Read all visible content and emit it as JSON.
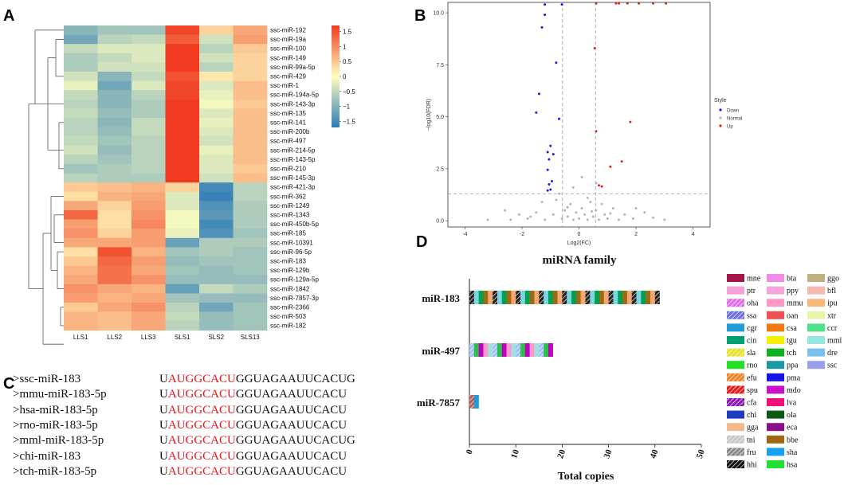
{
  "panels": {
    "a": "A",
    "b": "B",
    "c": "C",
    "d": "D"
  },
  "heatmap": {
    "columns": [
      "LLS1",
      "LLS2",
      "LLS3",
      "SLS1",
      "SLS2",
      "SLS13"
    ],
    "rows": [
      "ssc-miR-192",
      "ssc-miR-19a",
      "ssc-miR-100",
      "ssc-miR-149",
      "ssc-miR-99a-5p",
      "ssc-miR-429",
      "ssc-miR-1",
      "ssc-miR-194a-5p",
      "ssc-miR-143-3p",
      "ssc-miR-135",
      "ssc-miR-141",
      "ssc-miR-200b",
      "ssc-miR-497",
      "ssc-miR-214-5p",
      "ssc-miR-143-5p",
      "ssc-miR-210",
      "ssc-miR-145-3p",
      "ssc-miR-421-3p",
      "ssc-miR-362",
      "ssc-miR-1249",
      "ssc-miR-1343",
      "ssc-miR-450b-5p",
      "ssc-miR-185",
      "ssc-miR-10391",
      "ssc-miR-96-5p",
      "ssc-miR-183",
      "ssc-miR-129b",
      "ssc-miR-129a-5p",
      "ssc-miR-1842",
      "ssc-miR-7857-3p",
      "ssc-miR-2366",
      "ssc-miR-503",
      "ssc-miR-182"
    ],
    "values": [
      [
        -1.0,
        -0.8,
        -0.8,
        1.7,
        0.4,
        0.8
      ],
      [
        -1.2,
        -0.6,
        -0.5,
        1.5,
        -0.4,
        0.9
      ],
      [
        -0.5,
        -0.3,
        -0.3,
        1.8,
        -0.6,
        0.5
      ],
      [
        -0.7,
        -0.5,
        -0.3,
        1.8,
        -0.4,
        0.4
      ],
      [
        -0.7,
        -0.4,
        -0.4,
        1.8,
        -0.6,
        0.4
      ],
      [
        -0.4,
        -1.0,
        -0.5,
        1.6,
        0.2,
        0.4
      ],
      [
        -0.2,
        -1.2,
        -0.3,
        1.7,
        -0.3,
        0.6
      ],
      [
        -0.5,
        -1.0,
        -0.6,
        1.7,
        -0.2,
        0.6
      ],
      [
        -0.6,
        -1.0,
        -0.7,
        1.8,
        -0.1,
        0.5
      ],
      [
        -0.5,
        -0.9,
        -0.7,
        1.8,
        -0.3,
        0.6
      ],
      [
        -0.6,
        -1.0,
        -0.5,
        1.8,
        -0.2,
        0.6
      ],
      [
        -0.6,
        -0.9,
        -0.5,
        1.8,
        -0.3,
        0.6
      ],
      [
        -0.5,
        -0.8,
        -0.6,
        1.8,
        -0.4,
        0.6
      ],
      [
        -0.4,
        -0.9,
        -0.6,
        1.8,
        -0.2,
        0.6
      ],
      [
        -0.6,
        -0.8,
        -0.6,
        1.8,
        -0.3,
        0.6
      ],
      [
        -0.8,
        -0.7,
        -0.6,
        1.8,
        -0.3,
        0.5
      ],
      [
        -0.6,
        -0.7,
        -0.7,
        1.8,
        -0.4,
        0.6
      ],
      [
        0.5,
        0.6,
        0.7,
        0.4,
        -1.6,
        -0.6
      ],
      [
        0.3,
        0.7,
        0.8,
        -0.3,
        -1.7,
        -0.6
      ],
      [
        0.8,
        0.4,
        0.9,
        -0.3,
        -1.5,
        -0.7
      ],
      [
        1.4,
        0.3,
        1.0,
        -0.1,
        -1.4,
        -0.7
      ],
      [
        0.9,
        0.3,
        1.1,
        -0.1,
        -1.6,
        -0.7
      ],
      [
        1.0,
        0.4,
        0.9,
        -0.2,
        -1.5,
        -0.8
      ],
      [
        0.8,
        0.8,
        0.9,
        -1.3,
        -0.7,
        -0.7
      ],
      [
        0.3,
        1.6,
        0.7,
        -0.8,
        -0.7,
        -0.8
      ],
      [
        0.5,
        1.4,
        0.9,
        -0.9,
        -0.8,
        -0.8
      ],
      [
        0.7,
        1.3,
        0.8,
        -0.8,
        -0.9,
        -0.8
      ],
      [
        0.8,
        1.3,
        1.0,
        -0.9,
        -0.9,
        -0.9
      ],
      [
        1.0,
        0.8,
        0.7,
        -1.3,
        -0.5,
        -0.7
      ],
      [
        0.9,
        0.7,
        0.8,
        -0.8,
        -0.9,
        -0.9
      ],
      [
        0.5,
        0.8,
        1.0,
        -0.6,
        -1.2,
        -0.8
      ],
      [
        0.7,
        0.6,
        0.8,
        -0.5,
        -0.9,
        -0.8
      ],
      [
        0.7,
        0.6,
        0.8,
        -0.6,
        -0.9,
        -0.8
      ]
    ],
    "legend_ticks": [
      1.5,
      1,
      0.5,
      0,
      -0.5,
      -1,
      -1.5
    ],
    "legend_tick_labels": [
      "1.5",
      "1",
      "0.5",
      "0",
      "−0.5",
      "−1",
      "−1.5"
    ],
    "colors": {
      "low": "#2c7bb6",
      "mid": "#ffffbf",
      "high": "#f03b20"
    }
  },
  "chart_data": [
    {
      "type": "scatter",
      "title": "",
      "xlabel": "Log2(FC)",
      "ylabel": "−log10(FDR)",
      "xlim": [
        -4.6,
        4.6
      ],
      "ylim": [
        -0.3,
        10.5
      ],
      "xticks": [
        -4,
        -2,
        0,
        2,
        4
      ],
      "yticks": [
        0.0,
        2.5,
        5.0,
        7.5,
        10.0
      ],
      "ytick_labels": [
        "0.0",
        "2.5",
        "5.0",
        "7.5",
        "10.0"
      ],
      "thresholds": {
        "x": [
          -0.58,
          0.58
        ],
        "y": 1.3
      },
      "legend_title": "Style",
      "series": [
        {
          "name": "Down",
          "color": "#1a1adc",
          "points": [
            [
              -1.2,
              10.4
            ],
            [
              -0.6,
              10.4
            ],
            [
              -1.2,
              9.9
            ],
            [
              -1.3,
              9.3
            ],
            [
              -0.8,
              7.6
            ],
            [
              -1.4,
              6.1
            ],
            [
              -1.5,
              5.2
            ],
            [
              -0.7,
              4.9
            ],
            [
              -1.0,
              3.6
            ],
            [
              -1.1,
              3.3
            ],
            [
              -0.9,
              3.2
            ],
            [
              -1.05,
              2.95
            ],
            [
              -1.1,
              2.45
            ],
            [
              -0.95,
              1.9
            ],
            [
              -1.05,
              1.75
            ],
            [
              -1.1,
              1.45
            ],
            [
              -1.0,
              1.5
            ]
          ]
        },
        {
          "name": "Normal",
          "color": "#b5b5b5",
          "points": [
            [
              -3.2,
              0.05
            ],
            [
              -2.6,
              0.5
            ],
            [
              -2.1,
              0.3
            ],
            [
              -1.8,
              0.1
            ],
            [
              -1.5,
              0.4
            ],
            [
              -1.3,
              0.9
            ],
            [
              -1.2,
              0.05
            ],
            [
              -0.9,
              0.3
            ],
            [
              -0.8,
              1.0
            ],
            [
              -0.6,
              0.1
            ],
            [
              -0.5,
              0.5
            ],
            [
              -0.4,
              0.2
            ],
            [
              -0.3,
              0.8
            ],
            [
              -0.2,
              0.05
            ],
            [
              -0.1,
              0.4
            ],
            [
              0.0,
              0.1
            ],
            [
              0.1,
              0.6
            ],
            [
              0.2,
              0.3
            ],
            [
              0.3,
              0.05
            ],
            [
              0.4,
              0.9
            ],
            [
              0.5,
              0.2
            ],
            [
              0.6,
              0.5
            ],
            [
              0.7,
              0.05
            ],
            [
              0.8,
              0.8
            ],
            [
              0.9,
              0.3
            ],
            [
              1.0,
              0.1
            ],
            [
              1.2,
              0.6
            ],
            [
              1.4,
              0.05
            ],
            [
              1.6,
              0.3
            ],
            [
              1.9,
              0.1
            ],
            [
              2.3,
              0.4
            ],
            [
              3.0,
              0.05
            ],
            [
              -0.7,
              1.3
            ],
            [
              -0.2,
              1.6
            ],
            [
              0.3,
              1.1
            ],
            [
              0.6,
              1.8
            ],
            [
              0.1,
              2.1
            ],
            [
              -0.4,
              0.65
            ],
            [
              0.45,
              0.45
            ],
            [
              -1.7,
              0.2
            ],
            [
              2.0,
              0.6
            ],
            [
              1.1,
              0.35
            ],
            [
              -2.4,
              0.05
            ],
            [
              2.6,
              0.15
            ]
          ]
        },
        {
          "name": "Up",
          "color": "#e0201b",
          "points": [
            [
              0.6,
              10.45
            ],
            [
              1.3,
              10.45
            ],
            [
              1.4,
              10.45
            ],
            [
              1.7,
              10.45
            ],
            [
              2.1,
              10.45
            ],
            [
              2.6,
              10.45
            ],
            [
              3.05,
              10.45
            ],
            [
              0.55,
              8.3
            ],
            [
              1.8,
              4.75
            ],
            [
              0.6,
              4.3
            ],
            [
              1.5,
              2.85
            ],
            [
              1.1,
              2.6
            ],
            [
              0.7,
              1.7
            ],
            [
              0.8,
              1.65
            ]
          ]
        }
      ]
    },
    {
      "type": "bar",
      "title": "miRNA family",
      "xlabel": "Total copies",
      "ylabel": "",
      "xlim": [
        0,
        50
      ],
      "xticks": [
        0,
        10,
        20,
        30,
        40,
        50
      ],
      "categories": [
        "miR-183",
        "miR-497",
        "miR-7857"
      ],
      "totals": [
        41,
        18,
        2
      ],
      "stack_colors": [
        "#222222",
        "#c8c8c8",
        "#f5c08a",
        "#9ec0f5",
        "#e8e85a",
        "#7a1f1f",
        "#b85c5c",
        "#7ad6e0",
        "#6f6fe0",
        "#aaaaff",
        "#2dc04f",
        "#e05050",
        "#f08020",
        "#1d9ed8",
        "#00a050",
        "#e0e000",
        "#2020e0",
        "#c000c0",
        "#ff3b99",
        "#006000",
        "#900090",
        "#9b6b14",
        "#1ea0f0",
        "#30e030",
        "#ff99cc",
        "#ffaad8",
        "#ff66bb",
        "#c09070",
        "#f7a870",
        "#f0f0a0",
        "#60e090",
        "#a0e0e0",
        "#90a0ee",
        "#5b7de8",
        "#e8b0d0"
      ]
    }
  ],
  "volcano_legend": {
    "title": "Style",
    "items": [
      "Down",
      "Normal",
      "Up"
    ]
  },
  "family_legend": {
    "items": [
      {
        "code": "mne",
        "color": "#a5154b",
        "hatch": false
      },
      {
        "code": "ptr",
        "color": "#f2a2d6",
        "hatch": false
      },
      {
        "code": "oha",
        "color": "#e06be8",
        "hatch": true
      },
      {
        "code": "ssa",
        "color": "#6f6fe0",
        "hatch": true
      },
      {
        "code": "cgr",
        "color": "#1d9ed8",
        "hatch": false
      },
      {
        "code": "cin",
        "color": "#00a070",
        "hatch": false
      },
      {
        "code": "sla",
        "color": "#e8e02a",
        "hatch": true
      },
      {
        "code": "rno",
        "color": "#22e022",
        "hatch": false
      },
      {
        "code": "efu",
        "color": "#f08020",
        "hatch": true
      },
      {
        "code": "spu",
        "color": "#e81b1b",
        "hatch": true
      },
      {
        "code": "cfa",
        "color": "#8a18b0",
        "hatch": true
      },
      {
        "code": "chi",
        "color": "#1f3dbf",
        "hatch": false
      },
      {
        "code": "gga",
        "color": "#f3b98a",
        "hatch": false
      },
      {
        "code": "tni",
        "color": "#c8c8c8",
        "hatch": true
      },
      {
        "code": "fru",
        "color": "#8a8a8a",
        "hatch": true
      },
      {
        "code": "hhi",
        "color": "#111111",
        "hatch": true
      },
      {
        "code": "bta",
        "color": "#f08ce8",
        "hatch": false
      },
      {
        "code": "ppy",
        "color": "#f5a7dd",
        "hatch": false
      },
      {
        "code": "mmu",
        "color": "#ff99c8",
        "hatch": false
      },
      {
        "code": "oan",
        "color": "#f05050",
        "hatch": false
      },
      {
        "code": "csa",
        "color": "#f07a10",
        "hatch": false
      },
      {
        "code": "tgu",
        "color": "#f5f000",
        "hatch": false
      },
      {
        "code": "tch",
        "color": "#10b020",
        "hatch": false
      },
      {
        "code": "ppa",
        "color": "#1899a5",
        "hatch": false
      },
      {
        "code": "pma",
        "color": "#1515e8",
        "hatch": false
      },
      {
        "code": "mdo",
        "color": "#c810c8",
        "hatch": false
      },
      {
        "code": "lva",
        "color": "#f0107a",
        "hatch": false
      },
      {
        "code": "ola",
        "color": "#0a5a14",
        "hatch": false
      },
      {
        "code": "eca",
        "color": "#8a108a",
        "hatch": false
      },
      {
        "code": "bbe",
        "color": "#a06614",
        "hatch": false
      },
      {
        "code": "sha",
        "color": "#18a0f0",
        "hatch": false
      },
      {
        "code": "hsa",
        "color": "#22e030",
        "hatch": false
      },
      {
        "code": "ggo",
        "color": "#c0b080",
        "hatch": false
      },
      {
        "code": "bfl",
        "color": "#f5b9b0",
        "hatch": false
      },
      {
        "code": "ipu",
        "color": "#f7b878",
        "hatch": false
      },
      {
        "code": "xtr",
        "color": "#e8f5a8",
        "hatch": false
      },
      {
        "code": "ccr",
        "color": "#4ee08a",
        "hatch": false
      },
      {
        "code": "mml",
        "color": "#90e8e0",
        "hatch": false
      },
      {
        "code": "dre",
        "color": "#78c0f0",
        "hatch": false
      },
      {
        "code": "ssc",
        "color": "#9aa0f0",
        "hatch": false
      }
    ]
  },
  "sequences": [
    {
      "name": ">ssc-miR-183",
      "prefix": "U",
      "seed": "AUGGCACU",
      "rest": "GGUAGAAUUCACUG"
    },
    {
      "name": ">mmu-miR-183-5p",
      "prefix": "U",
      "seed": "AUGGCACU",
      "rest": "GGUAGAAUUCACU"
    },
    {
      "name": ">hsa-miR-183-5p",
      "prefix": "U",
      "seed": "AUGGCACU",
      "rest": "GGUAGAAUUCACU"
    },
    {
      "name": ">rno-miR-183-5p",
      "prefix": "U",
      "seed": "AUGGCACU",
      "rest": "GGUAGAAUUCACU"
    },
    {
      "name": ">mml-miR-183-5p",
      "prefix": "U",
      "seed": "AUGGCACU",
      "rest": "GGUAGAAUUCACUG"
    },
    {
      "name": ">chi-miR-183",
      "prefix": "U",
      "seed": "AUGGCACU",
      "rest": "GGUAGAAUUCACU"
    },
    {
      "name": ">tch-miR-183-5p",
      "prefix": "U",
      "seed": "AUGGCACU",
      "rest": "GGUAGAAUUCACU"
    }
  ]
}
